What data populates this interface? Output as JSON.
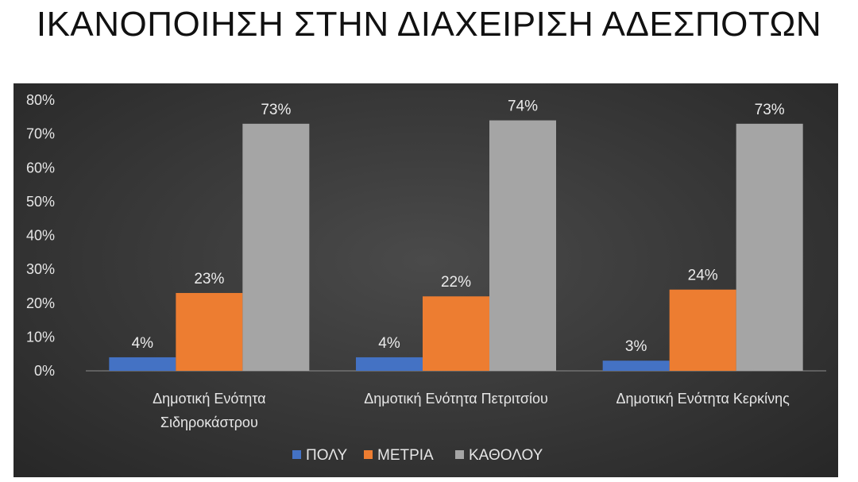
{
  "header": {
    "title": "ΙΚΑΝΟΠΟΙΗΣΗ ΣΤΗΝ ΔΙΑΧΕΙΡΙΣΗ ΑΔΕΣΠΟΤΩΝ"
  },
  "chart_data": {
    "type": "bar",
    "title": "ΙΚΑΝΟΠΟΙΗΣΗ ΣΤΗΝ ΔΙΑΧΕΙΡΙΣΗ ΑΔΕΣΠΟΤΩΝ",
    "xlabel": "",
    "ylabel": "",
    "categories": [
      [
        "Δημοτική Ενότητα",
        "Σιδηροκάστρου"
      ],
      [
        "Δημοτική Ενότητα Πετριτσίου"
      ],
      [
        "Δημοτική Ενότητα Κερκίνης"
      ]
    ],
    "series": [
      {
        "name": "ΠΟΛΥ",
        "values": [
          4,
          4,
          3
        ],
        "labels": [
          "4%",
          "4%",
          "3%"
        ],
        "color": "#4472C4"
      },
      {
        "name": "ΜΕΤΡΙΑ",
        "values": [
          23,
          22,
          24
        ],
        "labels": [
          "23%",
          "22%",
          "24%"
        ],
        "color": "#ED7D31"
      },
      {
        "name": "ΚΑΘΟΛΟΥ",
        "values": [
          73,
          74,
          73
        ],
        "labels": [
          "73%",
          "74%",
          "73%"
        ],
        "color": "#A5A5A5"
      }
    ],
    "ylim": [
      0,
      80
    ],
    "yticks": [
      0,
      10,
      20,
      30,
      40,
      50,
      60,
      70,
      80
    ],
    "ytick_labels": [
      "0%",
      "10%",
      "20%",
      "30%",
      "40%",
      "50%",
      "60%",
      "70%",
      "80%"
    ],
    "grid": false,
    "legend": "bottom",
    "background": "#3a3a3a"
  }
}
